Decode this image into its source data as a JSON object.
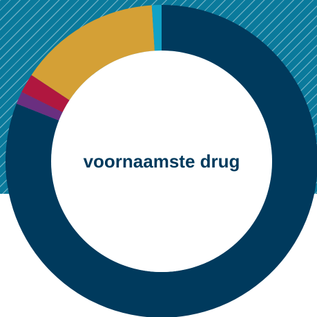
{
  "chart_data": {
    "type": "pie",
    "title": "voornaamste drug",
    "slices": [
      {
        "value": 81.0,
        "color": "#003a5d"
      },
      {
        "value": 1.3,
        "color": "#6a2f80"
      },
      {
        "value": 2.0,
        "color": "#b0173f"
      },
      {
        "value": 14.7,
        "color": "#d4a036"
      },
      {
        "value": 1.0,
        "color": "#11a2c6"
      }
    ],
    "center_label_color": "#003a5d",
    "legend": false,
    "data_labels": false
  }
}
